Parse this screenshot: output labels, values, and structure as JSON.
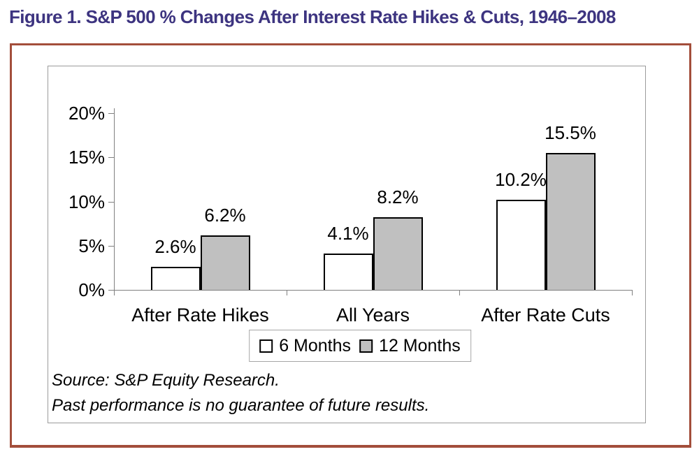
{
  "title": {
    "text": "Figure 1. S&P 500 % Changes After Interest Rate Hikes & Cuts, 1946–2008",
    "color": "#3D3480"
  },
  "chart_data": {
    "type": "bar",
    "title": "S&P 500 % Changes After Interest Rate Hikes & Cuts, 1946–2008",
    "categories": [
      "After Rate Hikes",
      "All Years",
      "After Rate Cuts"
    ],
    "series": [
      {
        "name": "6 Months",
        "fill": "#FFFFFF",
        "values": [
          2.6,
          4.1,
          10.2
        ],
        "data_labels": [
          "2.6%",
          "4.1%",
          "10.2%"
        ]
      },
      {
        "name": "12 Months",
        "fill": "#C0C0C0",
        "values": [
          6.2,
          8.2,
          15.5
        ],
        "data_labels": [
          "6.2%",
          "8.2%",
          "15.5%"
        ]
      }
    ],
    "ylim": [
      0,
      20
    ],
    "y_tick_step": 5,
    "y_tick_labels": [
      "0%",
      "5%",
      "10%",
      "15%",
      "20%"
    ],
    "grid": false,
    "legend_position": "bottom",
    "bar_border_color": "#000000",
    "axis_color": "#808080"
  },
  "footer": {
    "source_line": "Source: S&P Equity Research.",
    "disclaimer_line": "Past performance is no guarantee of future results."
  },
  "frame": {
    "outer_border_color": "#A34E3B",
    "inner_border_color": "#9B9B9B",
    "legend_border_color": "#A6A6A6"
  }
}
